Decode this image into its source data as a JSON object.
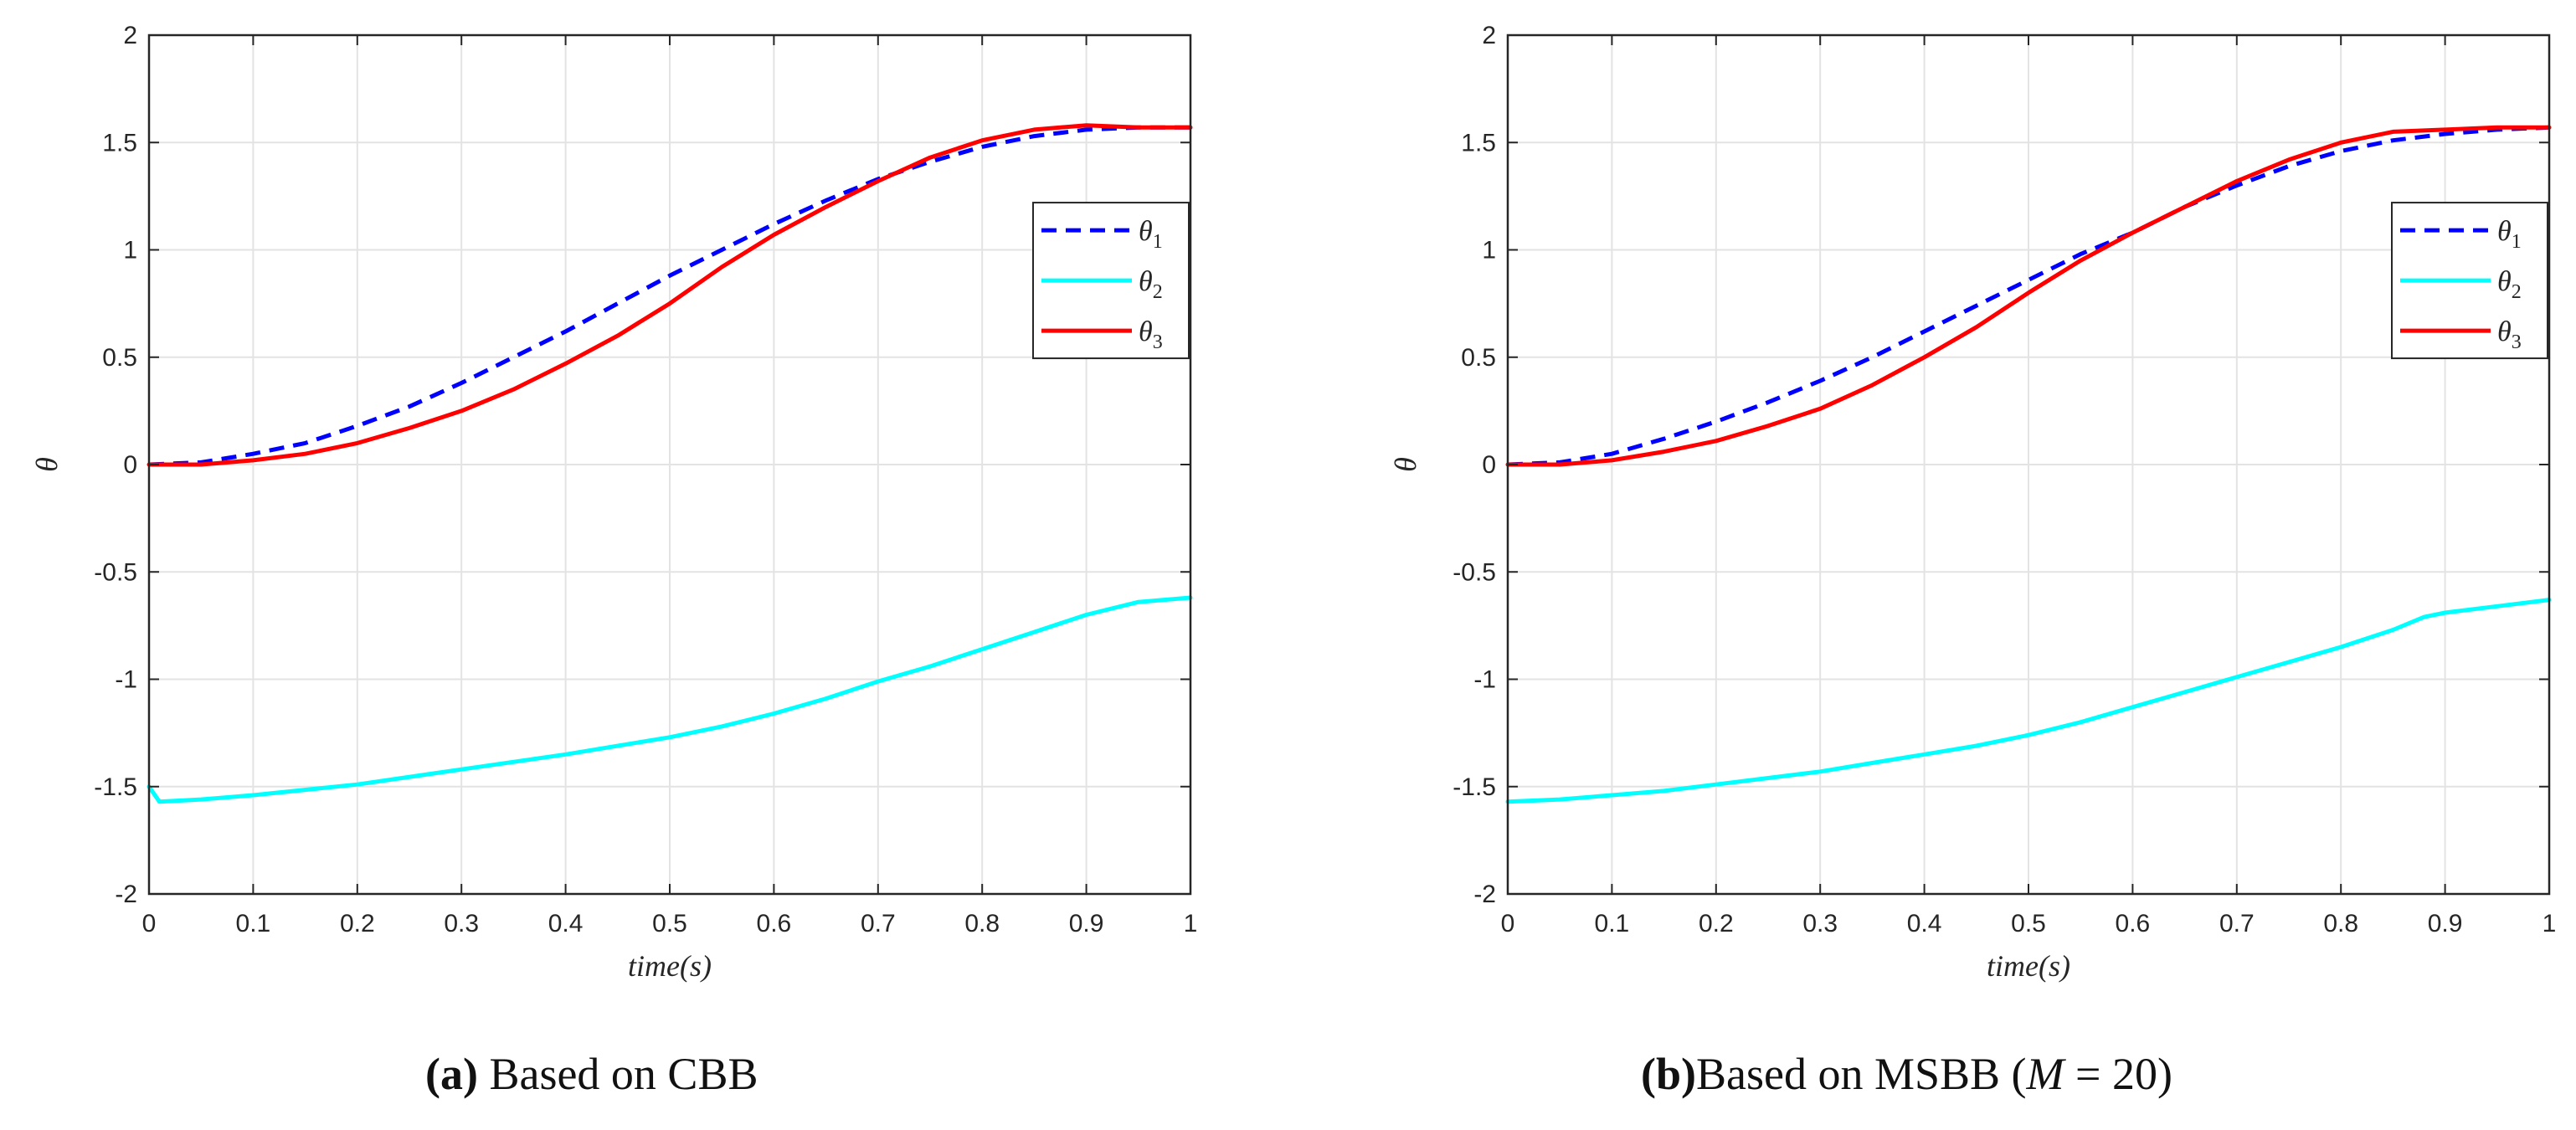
{
  "chart_data": [
    {
      "type": "line",
      "caption": {
        "label": "(a)",
        "text": "Based on CBB"
      },
      "xlabel": "time(s)",
      "ylabel": "θ",
      "xlim": [
        0,
        1
      ],
      "ylim": [
        -2,
        2
      ],
      "xticks": [
        0,
        0.1,
        0.2,
        0.3,
        0.4,
        0.5,
        0.6,
        0.7,
        0.8,
        0.9,
        1
      ],
      "xtick_labels": [
        "0",
        "0.1",
        "0.2",
        "0.3",
        "0.4",
        "0.5",
        "0.6",
        "0.7",
        "0.8",
        "0.9",
        "1"
      ],
      "yticks": [
        -2,
        -1.5,
        -1,
        -0.5,
        0,
        0.5,
        1,
        1.5,
        2
      ],
      "ytick_labels": [
        "-2",
        "-1.5",
        "-1",
        "-0.5",
        "0",
        "0.5",
        "1",
        "1.5",
        "2"
      ],
      "grid": true,
      "legend_position": "right-upper",
      "series": [
        {
          "name": "θ1",
          "base": "θ",
          "sub": "1",
          "color": "#0000ff",
          "style": "dashed",
          "x": [
            0,
            0.05,
            0.1,
            0.15,
            0.2,
            0.25,
            0.3,
            0.35,
            0.4,
            0.45,
            0.5,
            0.55,
            0.6,
            0.65,
            0.7,
            0.75,
            0.8,
            0.85,
            0.9,
            0.95,
            1
          ],
          "y": [
            0,
            0.01,
            0.05,
            0.1,
            0.18,
            0.27,
            0.38,
            0.5,
            0.62,
            0.75,
            0.88,
            1.0,
            1.12,
            1.23,
            1.33,
            1.41,
            1.48,
            1.53,
            1.56,
            1.57,
            1.57
          ]
        },
        {
          "name": "θ2",
          "base": "θ",
          "sub": "2",
          "color": "#00ffff",
          "style": "solid",
          "x": [
            0,
            0.01,
            0.05,
            0.1,
            0.2,
            0.3,
            0.4,
            0.5,
            0.55,
            0.6,
            0.65,
            0.7,
            0.75,
            0.8,
            0.85,
            0.9,
            0.95,
            1
          ],
          "y": [
            -1.5,
            -1.57,
            -1.56,
            -1.54,
            -1.49,
            -1.42,
            -1.35,
            -1.27,
            -1.22,
            -1.16,
            -1.09,
            -1.01,
            -0.94,
            -0.86,
            -0.78,
            -0.7,
            -0.64,
            -0.62
          ]
        },
        {
          "name": "θ3",
          "base": "θ",
          "sub": "3",
          "color": "#ff0000",
          "style": "solid",
          "x": [
            0,
            0.05,
            0.1,
            0.15,
            0.2,
            0.25,
            0.3,
            0.35,
            0.4,
            0.45,
            0.5,
            0.55,
            0.6,
            0.65,
            0.7,
            0.75,
            0.8,
            0.85,
            0.9,
            0.95,
            1
          ],
          "y": [
            0,
            0.0,
            0.02,
            0.05,
            0.1,
            0.17,
            0.25,
            0.35,
            0.47,
            0.6,
            0.75,
            0.92,
            1.07,
            1.2,
            1.32,
            1.43,
            1.51,
            1.56,
            1.58,
            1.57,
            1.57
          ]
        }
      ]
    },
    {
      "type": "line",
      "caption": {
        "label": "(b)",
        "text": "Based on MSBB (",
        "math": "M",
        "eq": " = 20)"
      },
      "xlabel": "time(s)",
      "ylabel": "θ",
      "xlim": [
        0,
        1
      ],
      "ylim": [
        -2,
        2
      ],
      "xticks": [
        0,
        0.1,
        0.2,
        0.3,
        0.4,
        0.5,
        0.6,
        0.7,
        0.8,
        0.9,
        1
      ],
      "xtick_labels": [
        "0",
        "0.1",
        "0.2",
        "0.3",
        "0.4",
        "0.5",
        "0.6",
        "0.7",
        "0.8",
        "0.9",
        "1"
      ],
      "yticks": [
        -2,
        -1.5,
        -1,
        -0.5,
        0,
        0.5,
        1,
        1.5,
        2
      ],
      "ytick_labels": [
        "-2",
        "-1.5",
        "-1",
        "-0.5",
        "0",
        "0.5",
        "1",
        "1.5",
        "2"
      ],
      "grid": true,
      "legend_position": "right-upper",
      "series": [
        {
          "name": "θ1",
          "base": "θ",
          "sub": "1",
          "color": "#0000ff",
          "style": "dashed",
          "x": [
            0,
            0.05,
            0.1,
            0.15,
            0.2,
            0.25,
            0.3,
            0.35,
            0.4,
            0.45,
            0.5,
            0.55,
            0.6,
            0.65,
            0.7,
            0.75,
            0.8,
            0.85,
            0.9,
            0.95,
            1
          ],
          "y": [
            0,
            0.01,
            0.05,
            0.12,
            0.2,
            0.29,
            0.39,
            0.5,
            0.62,
            0.74,
            0.86,
            0.98,
            1.08,
            1.2,
            1.3,
            1.39,
            1.46,
            1.51,
            1.54,
            1.56,
            1.57
          ]
        },
        {
          "name": "θ2",
          "base": "θ",
          "sub": "2",
          "color": "#00ffff",
          "style": "solid",
          "x": [
            0,
            0.05,
            0.1,
            0.15,
            0.2,
            0.25,
            0.3,
            0.35,
            0.4,
            0.45,
            0.5,
            0.55,
            0.6,
            0.65,
            0.7,
            0.75,
            0.8,
            0.85,
            0.88,
            0.9,
            0.95,
            1
          ],
          "y": [
            -1.57,
            -1.56,
            -1.54,
            -1.52,
            -1.49,
            -1.46,
            -1.43,
            -1.39,
            -1.35,
            -1.31,
            -1.26,
            -1.2,
            -1.13,
            -1.06,
            -0.99,
            -0.92,
            -0.85,
            -0.77,
            -0.71,
            -0.69,
            -0.66,
            -0.63
          ]
        },
        {
          "name": "θ3",
          "base": "θ",
          "sub": "3",
          "color": "#ff0000",
          "style": "solid",
          "x": [
            0,
            0.05,
            0.1,
            0.15,
            0.2,
            0.25,
            0.3,
            0.35,
            0.4,
            0.45,
            0.5,
            0.55,
            0.6,
            0.65,
            0.7,
            0.75,
            0.8,
            0.85,
            0.9,
            0.95,
            1
          ],
          "y": [
            0,
            0.0,
            0.02,
            0.06,
            0.11,
            0.18,
            0.26,
            0.37,
            0.5,
            0.64,
            0.8,
            0.95,
            1.08,
            1.2,
            1.32,
            1.42,
            1.5,
            1.55,
            1.56,
            1.57,
            1.57
          ]
        }
      ]
    }
  ]
}
